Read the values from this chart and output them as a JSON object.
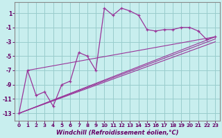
{
  "xlabel": "Windchill (Refroidissement éolien,°C)",
  "bg_color": "#c8eeee",
  "grid_color": "#99cccc",
  "line_color": "#993399",
  "xlim": [
    -0.5,
    23.5
  ],
  "ylim": [
    -14.0,
    2.5
  ],
  "xticks": [
    0,
    1,
    2,
    3,
    4,
    5,
    6,
    7,
    8,
    9,
    10,
    11,
    12,
    13,
    14,
    15,
    16,
    17,
    18,
    19,
    20,
    21,
    22,
    23
  ],
  "yticks": [
    1,
    -1,
    -3,
    -5,
    -7,
    -9,
    -11,
    -13
  ],
  "main_series": [
    [
      0,
      -13
    ],
    [
      1,
      -7
    ],
    [
      2,
      -10.5
    ],
    [
      3,
      -10
    ],
    [
      4,
      -12
    ],
    [
      5,
      -9
    ],
    [
      6,
      -8.5
    ],
    [
      7,
      -4.5
    ],
    [
      8,
      -5
    ],
    [
      9,
      -7
    ],
    [
      10,
      1.7
    ],
    [
      11,
      0.7
    ],
    [
      12,
      1.7
    ],
    [
      13,
      1.3
    ],
    [
      14,
      0.7
    ],
    [
      15,
      -1.3
    ],
    [
      16,
      -1.5
    ],
    [
      17,
      -1.3
    ],
    [
      18,
      -1.3
    ],
    [
      19,
      -1.0
    ],
    [
      20,
      -1.0
    ],
    [
      21,
      -1.5
    ],
    [
      22,
      -2.7
    ],
    [
      23,
      -2.3
    ]
  ],
  "linear_series": [
    [
      [
        0,
        -13
      ],
      [
        23,
        -2.3
      ]
    ],
    [
      [
        0,
        -13
      ],
      [
        23,
        -3.0
      ]
    ],
    [
      [
        0,
        -13
      ],
      [
        23,
        -2.6
      ]
    ],
    [
      [
        1,
        -7
      ],
      [
        23,
        -2.3
      ]
    ]
  ]
}
